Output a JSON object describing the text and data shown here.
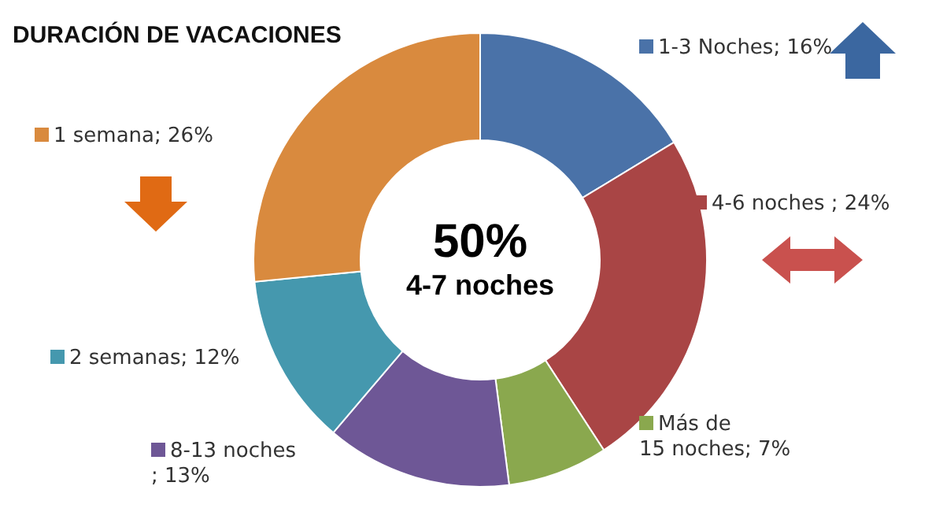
{
  "chart_data": {
    "type": "donut",
    "title": "DURACIÓN DE VACACIONES",
    "categories": [
      "1-3 Noches; 16%",
      "4-6 noches ; 24%",
      "Más de 15 noches; 7%",
      "8-13 noches ; 13%",
      "2 semanas; 12%",
      "1 semana; 26%"
    ],
    "values": [
      16,
      24,
      7,
      13,
      12,
      26
    ],
    "colors": [
      "#4a72a8",
      "#a94545",
      "#8aa84e",
      "#6e5796",
      "#4598ae",
      "#d98a3e"
    ],
    "annotations": [
      "50%",
      "4-7 noches"
    ],
    "legend": "right"
  }
}
